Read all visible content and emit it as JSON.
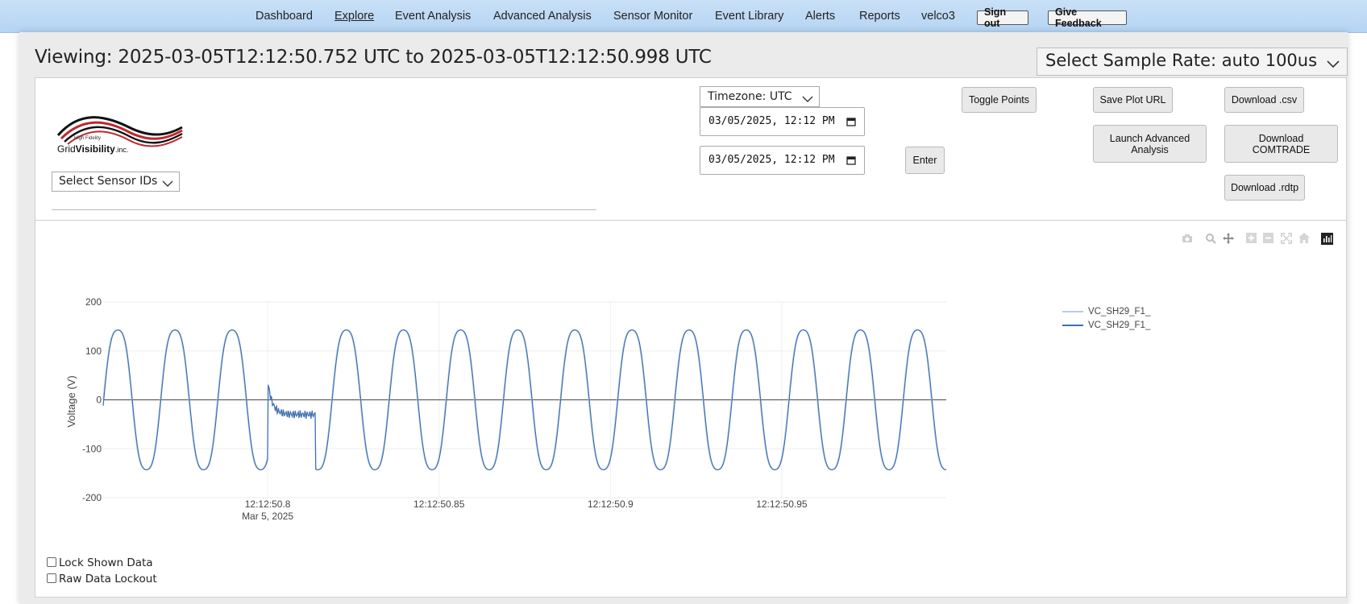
{
  "nav": {
    "items": [
      "Dashboard",
      "Explore",
      "Event Analysis",
      "Advanced Analysis",
      "Sensor Monitor",
      "Event Library",
      "Alerts",
      "Reports",
      "velco3"
    ],
    "active": "Explore",
    "sign_out": "Sign out",
    "feedback": "Give Feedback"
  },
  "viewing": "Viewing: 2025-03-05T12:12:50.752 UTC to 2025-03-05T12:12:50.998 UTC",
  "sample_rate": "Select Sample Rate: auto 100us",
  "logo": {
    "small": "High Fidelity",
    "main_a": "Grid",
    "main_b": "Visibility",
    "main_c": ".inc."
  },
  "sensor_select": "Select Sensor IDs",
  "timezone": "Timezone: UTC",
  "start_time": "03/05/2025, 12:12 PM",
  "end_time": "03/05/2025, 12:12 PM",
  "buttons": {
    "enter": "Enter",
    "toggle_points": "Toggle Points",
    "save_url": "Save Plot URL",
    "download_csv": "Download .csv",
    "launch_line1": "Launch Advanced",
    "launch_line2": "Analysis",
    "comtrade_line1": "Download",
    "comtrade_line2": "COMTRADE",
    "download_rdtp": "Download .rdtp"
  },
  "modebar_icons": [
    "camera-icon",
    "zoom-icon",
    "pan-icon",
    "zoom-in-icon",
    "zoom-out-icon",
    "autoscale-icon",
    "reset-axes-icon",
    "plotly-logo-icon"
  ],
  "checkboxes": {
    "lock": "Lock Shown Data",
    "raw": "Raw Data Lockout"
  },
  "colors": {
    "series1": "#b8cbe4",
    "series2": "#3d6fb0",
    "nav_bg": "#c2dcf6"
  },
  "chart_data": {
    "type": "line",
    "ylabel": "Voltage (V)",
    "xlabel": "",
    "ylim": [
      -200,
      200
    ],
    "yticks": [
      200,
      100,
      0,
      -100,
      -200
    ],
    "xticks": [
      "12:12:50.8",
      "12:12:50.85",
      "12:12:50.9",
      "12:12:50.95"
    ],
    "xtick_secondary": "Mar 5, 2025",
    "xrange_seconds": [
      50.752,
      50.998
    ],
    "frequency_hz": 60,
    "amplitude": 163,
    "event": {
      "start": 50.8,
      "end": 50.814,
      "level": -30
    },
    "series": [
      {
        "name": "VC_SH29_F1_"
      },
      {
        "name": "VC_SH29_F1_"
      }
    ],
    "legend_position": "top-right"
  }
}
